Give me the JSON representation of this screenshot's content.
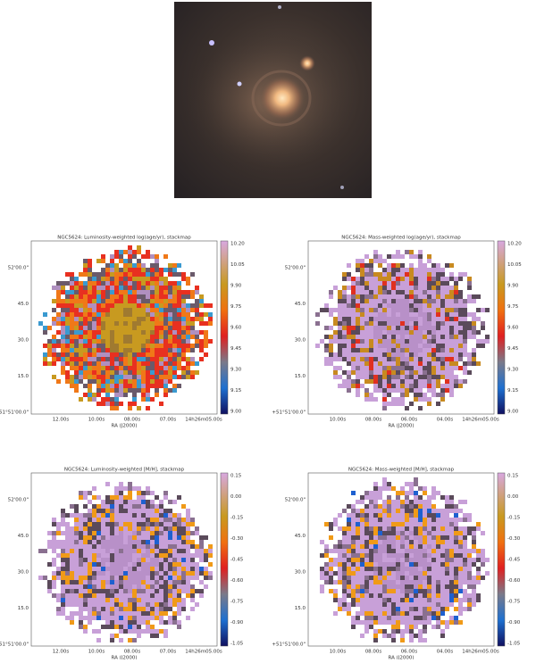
{
  "panels": [
    {
      "title": "NGC5624: Luminosity-weighted log(age/yr), stackmap",
      "colorbar_ticks": [
        "10.20",
        "10.05",
        "9.90",
        "9.75",
        "9.60",
        "9.45",
        "9.30",
        "9.15",
        "9.00"
      ],
      "y_ticks": [
        "52'00.0\"",
        "45.0",
        "30.0",
        "15.0",
        "+51°51'00.0\""
      ],
      "x_ticks": [
        "12.00s",
        "10.00s",
        "08.00s",
        "07.00s",
        "14h26m05.00s"
      ],
      "x_label": "RA (J2000)"
    },
    {
      "title": "NGC5624: Mass-weighted log(age/yr), stackmap",
      "colorbar_ticks": [
        "10.20",
        "10.05",
        "9.90",
        "9.75",
        "9.60",
        "9.45",
        "9.30",
        "9.15",
        "9.00"
      ],
      "y_ticks": [
        "52'00.0\"",
        "45.0",
        "30.0",
        "15.0",
        "+51°51'00.0\""
      ],
      "x_ticks": [
        "10.00s",
        "08.00s",
        "06.00s",
        "04.00s",
        "14h26m05.00s"
      ],
      "x_label": "RA (J2000)"
    },
    {
      "title": "NGC5624: Luminosity-weighted [M/H], stackmap",
      "colorbar_ticks": [
        "0.15",
        "0.00",
        "-0.15",
        "-0.30",
        "-0.45",
        "-0.60",
        "-0.75",
        "-0.90",
        "-1.05"
      ],
      "y_ticks": [
        "52'00.0\"",
        "45.0",
        "30.0",
        "15.0",
        "+51°51'00.0\""
      ],
      "x_ticks": [
        "12.00s",
        "10.00s",
        "08.00s",
        "07.00s",
        "14h26m05.00s"
      ],
      "x_label": "RA (J2000)"
    },
    {
      "title": "NGC5624: Mass-weighted [M/H], stackmap",
      "colorbar_ticks": [
        "0.15",
        "0.00",
        "-0.15",
        "-0.30",
        "-0.45",
        "-0.60",
        "-0.75",
        "-0.90",
        "-1.05"
      ],
      "y_ticks": [
        "52'00.0\"",
        "45.0",
        "30.0",
        "15.0",
        "+51°51'00.0\""
      ],
      "x_ticks": [
        "10.00s",
        "08.00s",
        "06.00s",
        "04.00s",
        "14h26m05.00s"
      ],
      "x_label": "RA (J2000)"
    }
  ]
}
